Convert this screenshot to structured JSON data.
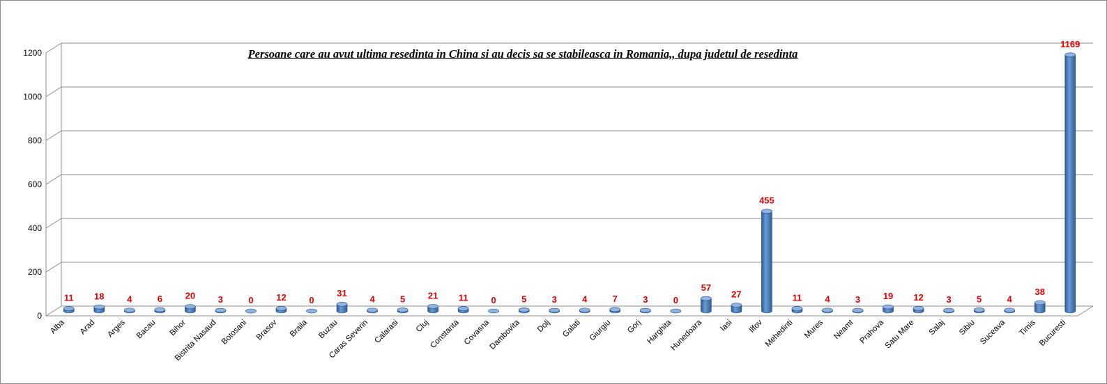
{
  "chart_data": {
    "type": "bar",
    "title": "Persoane care au avut ultima resedinta in China si au decis sa se stabileasca in Romania,, dupa judetul de resedinta",
    "xlabel": "",
    "ylabel": "",
    "ylim": [
      0,
      1200
    ],
    "yticks": [
      0,
      200,
      400,
      600,
      800,
      1000,
      1200
    ],
    "grid": true,
    "legend": "none",
    "bar_color": "#4a7ebb",
    "label_color": "#e00000",
    "categories": [
      "Alba",
      "Arad",
      "Arges",
      "Bacau",
      "Bihor",
      "Bistrita Nasaud",
      "Botosani",
      "Brasov",
      "Braila",
      "Buzau",
      "Caras Severin",
      "Calarasi",
      "Cluj",
      "Constanta",
      "Covasna",
      "Dambovita",
      "Dolj",
      "Galati",
      "Giurgiu",
      "Gorj",
      "Harghita",
      "Hunedoara",
      "Iasi",
      "Ilfov",
      "Mehedinti",
      "Mures",
      "Neamt",
      "Prahova",
      "Satu Mare",
      "Salaj",
      "Sibiu",
      "Suceava",
      "Timis",
      "Bucuresti"
    ],
    "values": [
      11,
      18,
      4,
      6,
      20,
      3,
      0,
      12,
      0,
      31,
      4,
      5,
      21,
      11,
      0,
      5,
      3,
      4,
      7,
      3,
      0,
      57,
      27,
      455,
      11,
      4,
      3,
      19,
      12,
      3,
      5,
      4,
      38,
      1169
    ]
  }
}
